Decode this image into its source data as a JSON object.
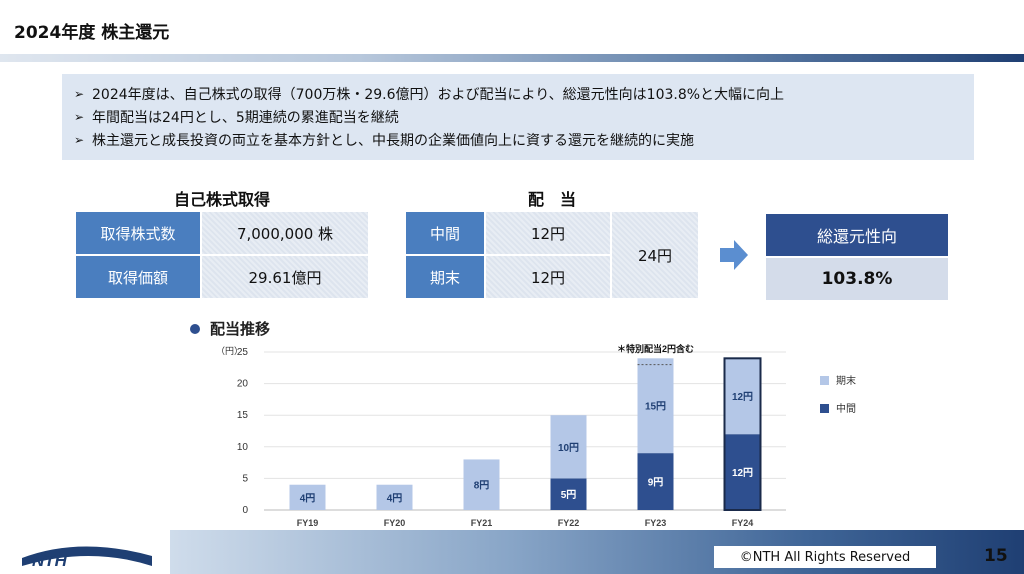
{
  "header": {
    "title": "2024年度 株主還元"
  },
  "bullets": [
    "2024年度は、自己株式の取得（700万株・29.6億円）および配当により、総還元性向は103.8%と大幅に向上",
    "年間配当は24円とし、5期連続の累進配当を継続",
    "株主還元と成長投資の両立を基本方針とし、中長期の企業価値向上に資する還元を継続的に実施"
  ],
  "buyback": {
    "title": "自己株式取得",
    "rows": [
      {
        "label": "取得株式数",
        "value": "7,000,000 株"
      },
      {
        "label": "取得価額",
        "value": "29.61億円"
      }
    ]
  },
  "dividend": {
    "title": "配　当",
    "rows": [
      {
        "label": "中間",
        "value": "12円"
      },
      {
        "label": "期末",
        "value": "12円"
      }
    ],
    "total": "24円"
  },
  "payout": {
    "label": "総還元性向",
    "value": "103.8%"
  },
  "chart_section": {
    "title": "配当推移"
  },
  "chart_data": {
    "type": "bar",
    "stacked": true,
    "unit_label": "（円）",
    "categories": [
      "FY19",
      "FY20",
      "FY21",
      "FY22",
      "FY23",
      "FY24"
    ],
    "ylim": [
      0,
      25
    ],
    "yticks": [
      0,
      5,
      10,
      15,
      20,
      25
    ],
    "grid": true,
    "legend_position": "right",
    "series": [
      {
        "name": "中間",
        "color": "#2e4f8f",
        "values": [
          0,
          0,
          0,
          5,
          9,
          12
        ],
        "labels": [
          "",
          "",
          "",
          "5円",
          "9円",
          "12円"
        ]
      },
      {
        "name": "期末",
        "color": "#b4c7e7",
        "values": [
          4,
          4,
          8,
          10,
          15,
          12
        ],
        "labels": [
          "4円",
          "4円",
          "8円",
          "10円",
          "15円",
          "12円"
        ]
      }
    ],
    "annotation": "＊特別配当2円含む"
  },
  "footer": {
    "copyright": "©NTH All Rights Reserved",
    "page": "15",
    "logo_text": "NTH"
  }
}
